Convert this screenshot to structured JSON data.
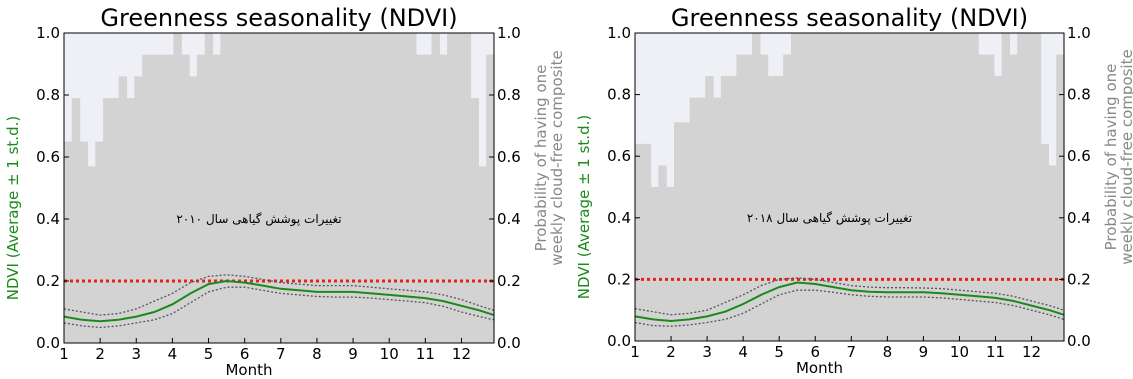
{
  "chart_data": [
    {
      "type": "line",
      "title": "Greenness seasonality (NDVI)",
      "xlabel": "Month",
      "ylabel": "NDVI (Average ± 1 st.d.)",
      "ylabel_right": "Probability of having one\nweekly cloud-free composite",
      "xlim": [
        1,
        12.9
      ],
      "ylim": [
        0,
        1
      ],
      "xticks": [
        "1",
        "2",
        "3",
        "4",
        "5",
        "6",
        "7",
        "8",
        "9",
        "10",
        "11",
        "12"
      ],
      "yticks": [
        "0.0",
        "0.2",
        "0.4",
        "0.6",
        "0.8",
        "1.0"
      ],
      "annotation": "تغییرات پوشش گیاهی سال ۲۰۱۰",
      "threshold": 0.2,
      "colors": {
        "mean": "#1a8a1a",
        "std": "#555555",
        "threshold": "#e8221a",
        "cloud": "#d3d3d3",
        "bg": "#eef0f6"
      },
      "probability": [
        0.65,
        0.79,
        0.65,
        0.57,
        0.65,
        0.79,
        0.79,
        0.86,
        0.79,
        0.86,
        0.93,
        0.93,
        0.93,
        0.93,
        1.0,
        0.93,
        0.86,
        0.93,
        1.0,
        0.93,
        1.0,
        1.0,
        1.0,
        1.0,
        1.0,
        1.0,
        1.0,
        1.0,
        1.0,
        1.0,
        1.0,
        1.0,
        1.0,
        1.0,
        1.0,
        1.0,
        1.0,
        1.0,
        1.0,
        1.0,
        1.0,
        1.0,
        1.0,
        1.0,
        1.0,
        0.93,
        0.93,
        1.0,
        0.93,
        1.0,
        1.0,
        1.0,
        0.79,
        0.57,
        0.93
      ],
      "x": [
        1,
        1.5,
        2,
        2.5,
        3,
        3.5,
        4,
        4.5,
        5,
        5.5,
        6,
        6.5,
        7,
        7.5,
        8,
        8.5,
        9,
        9.5,
        10,
        10.5,
        11,
        11.5,
        12,
        12.5,
        12.9
      ],
      "mean": [
        0.085,
        0.075,
        0.07,
        0.075,
        0.085,
        0.1,
        0.125,
        0.16,
        0.19,
        0.2,
        0.195,
        0.185,
        0.175,
        0.17,
        0.165,
        0.165,
        0.165,
        0.16,
        0.155,
        0.15,
        0.145,
        0.135,
        0.12,
        0.105,
        0.09
      ],
      "upper": [
        0.11,
        0.1,
        0.09,
        0.095,
        0.11,
        0.135,
        0.16,
        0.195,
        0.215,
        0.22,
        0.215,
        0.205,
        0.195,
        0.19,
        0.185,
        0.185,
        0.185,
        0.18,
        0.175,
        0.17,
        0.165,
        0.155,
        0.14,
        0.12,
        0.105
      ],
      "lower": [
        0.065,
        0.055,
        0.05,
        0.055,
        0.065,
        0.075,
        0.095,
        0.13,
        0.165,
        0.18,
        0.18,
        0.17,
        0.16,
        0.155,
        0.15,
        0.148,
        0.148,
        0.145,
        0.14,
        0.135,
        0.13,
        0.118,
        0.1,
        0.085,
        0.075
      ]
    },
    {
      "type": "line",
      "title": "Greenness seasonality (NDVI)",
      "xlabel": "Month",
      "ylabel": "NDVI (Average ± 1 st.d.)",
      "ylabel_right": "Probability of having one\nweekly cloud-free composite",
      "xlim": [
        1,
        12.9
      ],
      "ylim": [
        0,
        1
      ],
      "xticks": [
        "1",
        "2",
        "3",
        "4",
        "5",
        "6",
        "7",
        "8",
        "9",
        "10",
        "11",
        "12"
      ],
      "yticks": [
        "0.0",
        "0.2",
        "0.4",
        "0.6",
        "0.8",
        "1.0"
      ],
      "annotation": "تغییرات پوشش گیاهی سال ۲۰۱۸",
      "threshold": 0.2,
      "colors": {
        "mean": "#1a8a1a",
        "std": "#555555",
        "threshold": "#e8221a",
        "cloud": "#d3d3d3",
        "bg": "#eef0f6"
      },
      "probability": [
        0.64,
        0.64,
        0.5,
        0.57,
        0.5,
        0.71,
        0.71,
        0.79,
        0.79,
        0.86,
        0.79,
        0.86,
        0.86,
        0.93,
        0.93,
        1.0,
        0.93,
        0.86,
        0.86,
        0.93,
        1.0,
        1.0,
        1.0,
        1.0,
        1.0,
        1.0,
        1.0,
        1.0,
        1.0,
        1.0,
        1.0,
        1.0,
        1.0,
        1.0,
        1.0,
        1.0,
        1.0,
        1.0,
        1.0,
        1.0,
        1.0,
        1.0,
        1.0,
        1.0,
        0.93,
        0.93,
        0.86,
        1.0,
        0.93,
        1.0,
        1.0,
        1.0,
        0.64,
        0.57,
        0.93
      ],
      "x": [
        1,
        1.5,
        2,
        2.5,
        3,
        3.5,
        4,
        4.5,
        5,
        5.5,
        6,
        6.5,
        7,
        7.5,
        8,
        8.5,
        9,
        9.5,
        10,
        10.5,
        11,
        11.5,
        12,
        12.5,
        12.9
      ],
      "mean": [
        0.08,
        0.07,
        0.065,
        0.07,
        0.08,
        0.095,
        0.12,
        0.15,
        0.175,
        0.19,
        0.185,
        0.175,
        0.165,
        0.16,
        0.158,
        0.158,
        0.158,
        0.155,
        0.15,
        0.145,
        0.14,
        0.13,
        0.115,
        0.1,
        0.085
      ],
      "upper": [
        0.105,
        0.095,
        0.085,
        0.09,
        0.1,
        0.125,
        0.15,
        0.18,
        0.2,
        0.205,
        0.2,
        0.19,
        0.18,
        0.175,
        0.173,
        0.173,
        0.172,
        0.17,
        0.165,
        0.16,
        0.155,
        0.145,
        0.13,
        0.115,
        0.1
      ],
      "lower": [
        0.06,
        0.05,
        0.048,
        0.052,
        0.06,
        0.07,
        0.09,
        0.12,
        0.15,
        0.165,
        0.165,
        0.158,
        0.15,
        0.145,
        0.143,
        0.143,
        0.143,
        0.14,
        0.135,
        0.13,
        0.125,
        0.115,
        0.1,
        0.085,
        0.07
      ]
    }
  ]
}
